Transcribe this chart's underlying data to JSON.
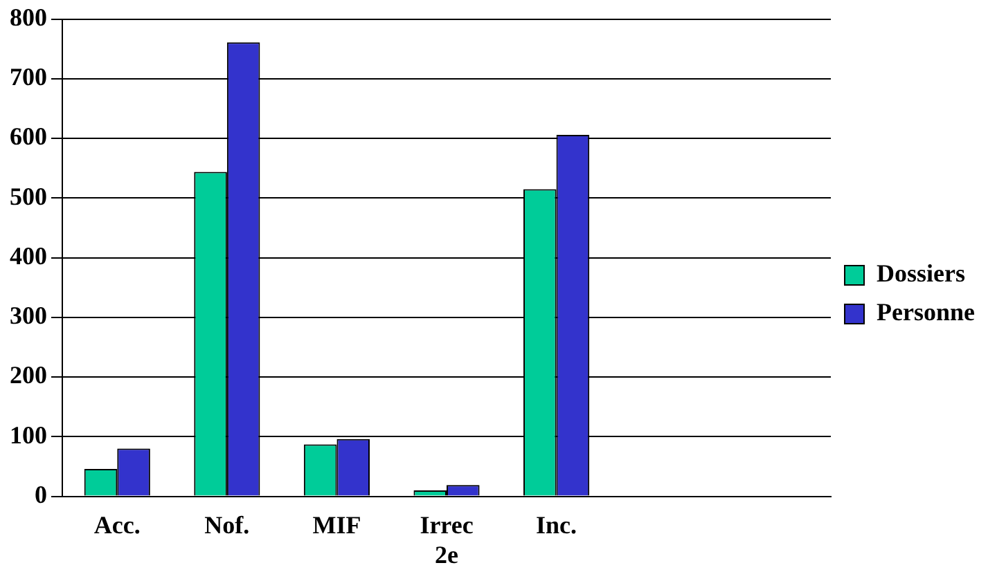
{
  "chart_data": {
    "type": "bar",
    "categories": [
      "Acc.",
      "Nof.",
      "MIF",
      "Irrec 2e",
      "Inc.",
      null,
      null
    ],
    "series": [
      {
        "name": "Dossiers",
        "color": "#00cc99",
        "values": [
          46,
          544,
          87,
          10,
          515,
          null,
          null
        ]
      },
      {
        "name": "Personne",
        "color": "#3333cc",
        "values": [
          80,
          761,
          96,
          19,
          606,
          null,
          null
        ]
      }
    ],
    "ylim": [
      0,
      800
    ],
    "yticks": [
      0,
      100,
      200,
      300,
      400,
      500,
      600,
      700,
      800
    ],
    "grid": "y",
    "legend": "right"
  }
}
